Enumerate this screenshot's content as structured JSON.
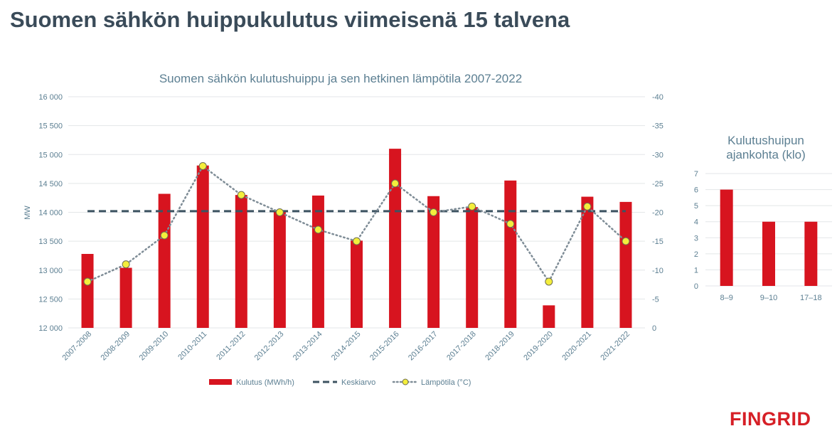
{
  "page": {
    "title": "Suomen sähkön huippukulutus viimeisenä 15 talvena"
  },
  "logo": {
    "text": "FINGRID"
  },
  "colors": {
    "bar": "#d7141f",
    "average": "#3d5361",
    "temp_line": "#7e8c96",
    "temp_marker": "#f4ee3c",
    "marker_edge": "#6e6e50",
    "text": "#5c7f92",
    "title": "#3a4b59",
    "grid": "#e3e6e8"
  },
  "chart_data": [
    {
      "type": "bar",
      "title": "Suomen sähkön kulutushuippu ja sen hetkinen lämpötila 2007-2022",
      "ylabel": "MW",
      "ylim": [
        12000,
        16000
      ],
      "y_ticks": [
        12000,
        12500,
        13000,
        13500,
        14000,
        14500,
        15000,
        15500,
        16000
      ],
      "y_tick_labels": [
        "12 000",
        "12 500",
        "13 000",
        "13 500",
        "14 000",
        "14 500",
        "15 000",
        "15 500",
        "16 000"
      ],
      "y2lim": [
        0,
        -40
      ],
      "y2_ticks": [
        0,
        -5,
        -10,
        -15,
        -20,
        -25,
        -30,
        -35,
        -40
      ],
      "y2_tick_labels": [
        "0",
        "-5",
        "-10",
        "-15",
        "-20",
        "-25",
        "-30",
        "-35",
        "-40"
      ],
      "categories": [
        "2007-2008",
        "2008-2009",
        "2009-2010",
        "2010-2011",
        "2011-2012",
        "2012-2013",
        "2013-2014",
        "2014-2015",
        "2015-2016",
        "2016-2017",
        "2017-2018",
        "2018-2019",
        "2019-2020",
        "2020-2021",
        "2021-2022"
      ],
      "series": [
        {
          "name": "Kulutus (MWh/h)",
          "type": "bar",
          "values": [
            13280,
            13040,
            14320,
            14810,
            14300,
            14020,
            14290,
            13510,
            15100,
            14280,
            14090,
            14550,
            12390,
            14270,
            14180
          ]
        },
        {
          "name": "Keskiarvo",
          "type": "line",
          "style": "dashed",
          "value": 14020
        },
        {
          "name": "Lämpötila (°C)",
          "type": "line",
          "style": "dotted",
          "axis": "secondary",
          "values": [
            -8,
            -11,
            -16,
            -28,
            -23,
            -20,
            -17,
            -15,
            -25,
            -20,
            -21,
            -18,
            -8,
            -21,
            -15
          ]
        }
      ],
      "legend": [
        "Kulutus (MWh/h)",
        "Keskiarvo",
        "Lämpötila (°C)"
      ],
      "legend_position": "bottom"
    },
    {
      "type": "bar",
      "title_lines": [
        "Kulutushuipun",
        "ajankohta (klo)"
      ],
      "categories": [
        "8–9",
        "9–10",
        "17–18"
      ],
      "values": [
        6,
        4,
        4
      ],
      "ylim": [
        0,
        7
      ],
      "y_ticks": [
        0,
        1,
        2,
        3,
        4,
        5,
        6,
        7
      ],
      "y_tick_labels": [
        "0",
        "1",
        "2",
        "3",
        "4",
        "5",
        "6",
        "7"
      ]
    }
  ]
}
